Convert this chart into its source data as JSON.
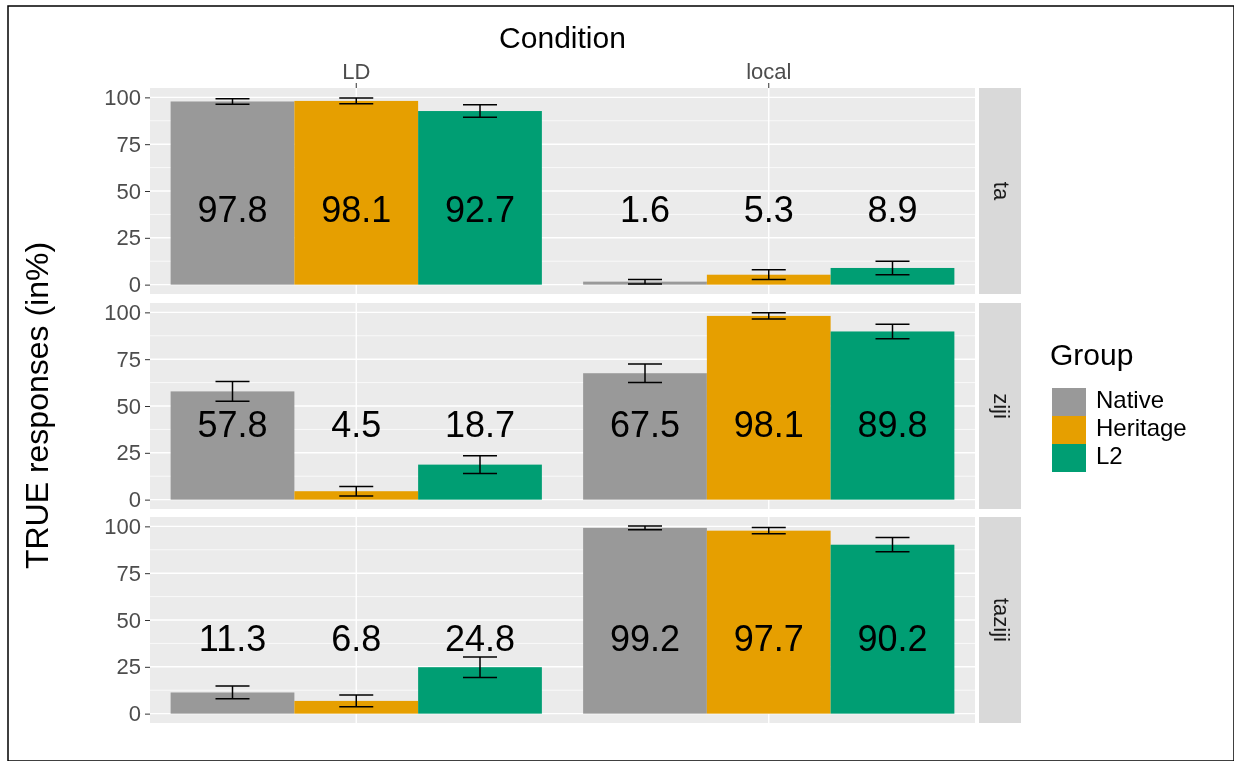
{
  "chart_data": [
    {
      "type": "bar",
      "annotations": [
        "ta"
      ],
      "xlabel": "Condition",
      "categories": [
        "LD",
        "local"
      ],
      "ylim": [
        -5,
        105
      ],
      "yticks": [
        0,
        25,
        50,
        75,
        100
      ],
      "grid": true,
      "legend": false,
      "data_labels": true,
      "series": [
        {
          "color": "#999999",
          "values": [
            97.8,
            1.6
          ],
          "errors": [
            1.5,
            1.2
          ]
        },
        {
          "color": "#e69f00",
          "values": [
            98.1,
            5.3
          ],
          "errors": [
            1.5,
            2.6
          ]
        },
        {
          "color": "#009e73",
          "values": [
            92.7,
            8.9
          ],
          "errors": [
            3.3,
            3.6
          ]
        }
      ]
    },
    {
      "type": "bar",
      "annotations": [
        "ziji"
      ],
      "ylabel": "TRUE responses (in%)",
      "legend_title": "Group",
      "legend": "right",
      "categories": [
        null,
        null
      ],
      "tick_labels": "y",
      "ylim": [
        -5,
        105
      ],
      "yticks": [
        0,
        25,
        50,
        75,
        100
      ],
      "grid": true,
      "data_labels": true,
      "series": [
        {
          "name": "Native",
          "color": "#999999",
          "values": [
            57.8,
            67.5
          ],
          "errors": [
            5.3,
            4.9
          ]
        },
        {
          "name": "Heritage",
          "color": "#e69f00",
          "values": [
            4.5,
            98.1
          ],
          "errors": [
            2.5,
            1.7
          ]
        },
        {
          "name": "L2",
          "color": "#009e73",
          "values": [
            18.7,
            89.8
          ],
          "errors": [
            4.8,
            3.9
          ]
        }
      ]
    },
    {
      "type": "bar",
      "annotations": [
        "taziji"
      ],
      "categories": [
        null,
        null
      ],
      "tick_labels": "y",
      "ylim": [
        -5,
        105
      ],
      "yticks": [
        0,
        25,
        50,
        75,
        100
      ],
      "grid": true,
      "legend": false,
      "data_labels": true,
      "series": [
        {
          "color": "#999999",
          "values": [
            11.3,
            99.2
          ],
          "errors": [
            3.4,
            1.0
          ]
        },
        {
          "color": "#e69f00",
          "values": [
            6.8,
            97.7
          ],
          "errors": [
            3.1,
            1.7
          ]
        },
        {
          "color": "#009e73",
          "values": [
            24.8,
            90.2
          ],
          "errors": [
            5.5,
            3.8
          ]
        }
      ]
    }
  ]
}
